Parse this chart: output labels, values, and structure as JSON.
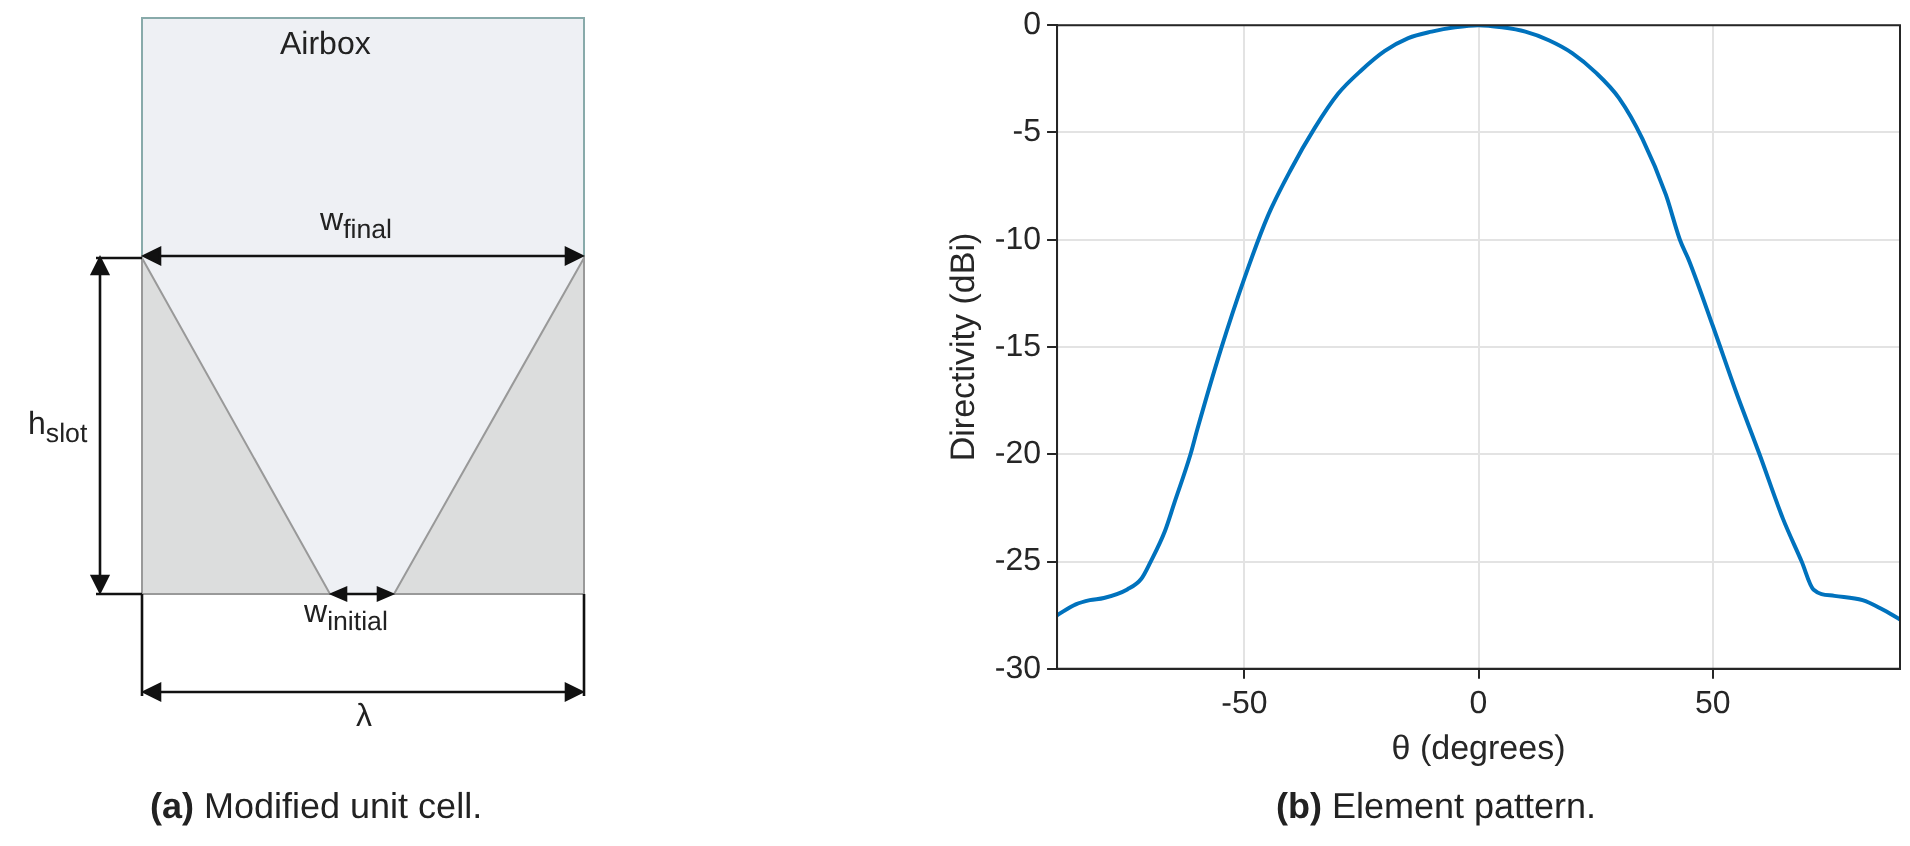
{
  "chart_data": [
    {
      "type": "other",
      "annotations": [
        "Airbox",
        "w$_{final}$",
        "h$_{slot}$",
        "w$_{initial}$",
        "λ",
        "(a) Modified unit cell."
      ]
    },
    {
      "type": "line",
      "xlabel": "θ (degrees)",
      "ylabel": "Directivity (dBi)",
      "xlim": [
        -90,
        90
      ],
      "ylim": [
        -30,
        0
      ],
      "xticks": [
        -50,
        0,
        50
      ],
      "yticks": [
        0,
        -5,
        -10,
        -15,
        -20,
        -25,
        -30
      ],
      "grid": true,
      "marker": "none",
      "line_style": "solid",
      "legend": false,
      "x": [
        -90,
        -86,
        -83,
        -80,
        -75,
        -72,
        -70,
        -67,
        -65,
        -61.5,
        -60,
        -55,
        -50,
        -45,
        -40,
        -35,
        -30,
        -25,
        -20,
        -15,
        -10,
        -5,
        0,
        5,
        10,
        15,
        20,
        25,
        30,
        35,
        40,
        43,
        45,
        50,
        55,
        60,
        65,
        69,
        71.5,
        76,
        82,
        86,
        90
      ],
      "series": [
        {
          "color": "#0072bd",
          "values": [
            -27.5,
            -27.0,
            -26.8,
            -26.7,
            -26.3,
            -25.8,
            -25.0,
            -23.6,
            -22.3,
            -20.0,
            -18.8,
            -15.1,
            -11.8,
            -8.9,
            -6.7,
            -4.8,
            -3.2,
            -2.1,
            -1.2,
            -0.6,
            -0.3,
            -0.1,
            0,
            -0.1,
            -0.3,
            -0.7,
            -1.3,
            -2.2,
            -3.4,
            -5.3,
            -7.9,
            -10.0,
            -11.0,
            -14.0,
            -17.1,
            -20.0,
            -23.0,
            -25.0,
            -26.3,
            -26.6,
            -26.8,
            -27.2,
            -27.7
          ]
        }
      ],
      "annotations": [
        "(b) Element pattern."
      ]
    }
  ]
}
